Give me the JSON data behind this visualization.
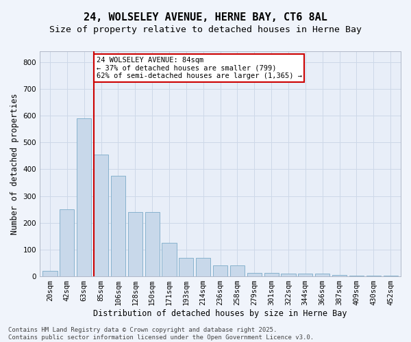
{
  "title": "24, WOLSELEY AVENUE, HERNE BAY, CT6 8AL",
  "subtitle": "Size of property relative to detached houses in Herne Bay",
  "xlabel": "Distribution of detached houses by size in Herne Bay",
  "ylabel": "Number of detached properties",
  "categories": [
    "20sqm",
    "42sqm",
    "63sqm",
    "85sqm",
    "106sqm",
    "128sqm",
    "150sqm",
    "171sqm",
    "193sqm",
    "214sqm",
    "236sqm",
    "258sqm",
    "279sqm",
    "301sqm",
    "322sqm",
    "344sqm",
    "366sqm",
    "387sqm",
    "409sqm",
    "430sqm",
    "452sqm"
  ],
  "values": [
    20,
    250,
    590,
    455,
    375,
    240,
    240,
    125,
    68,
    68,
    40,
    40,
    12,
    12,
    10,
    10,
    10,
    5,
    2,
    2,
    2
  ],
  "bar_color": "#c8d8ea",
  "bar_edge_color": "#7aaac8",
  "grid_color": "#cdd8e8",
  "background_color": "#e8eef8",
  "fig_background_color": "#f0f4fb",
  "annotation_box_color": "#ffffff",
  "annotation_border_color": "#cc0000",
  "property_line_color": "#cc0000",
  "property_bar_index": 3,
  "annotation_text_line1": "24 WOLSELEY AVENUE: 84sqm",
  "annotation_text_line2": "← 37% of detached houses are smaller (799)",
  "annotation_text_line3": "62% of semi-detached houses are larger (1,365) →",
  "ylim": [
    0,
    840
  ],
  "yticks": [
    0,
    100,
    200,
    300,
    400,
    500,
    600,
    700,
    800
  ],
  "footnote_line1": "Contains HM Land Registry data © Crown copyright and database right 2025.",
  "footnote_line2": "Contains public sector information licensed under the Open Government Licence v3.0.",
  "title_fontsize": 11,
  "subtitle_fontsize": 9.5,
  "xlabel_fontsize": 8.5,
  "ylabel_fontsize": 8.5,
  "tick_fontsize": 7.5,
  "annotation_fontsize": 7.5,
  "footnote_fontsize": 6.5
}
